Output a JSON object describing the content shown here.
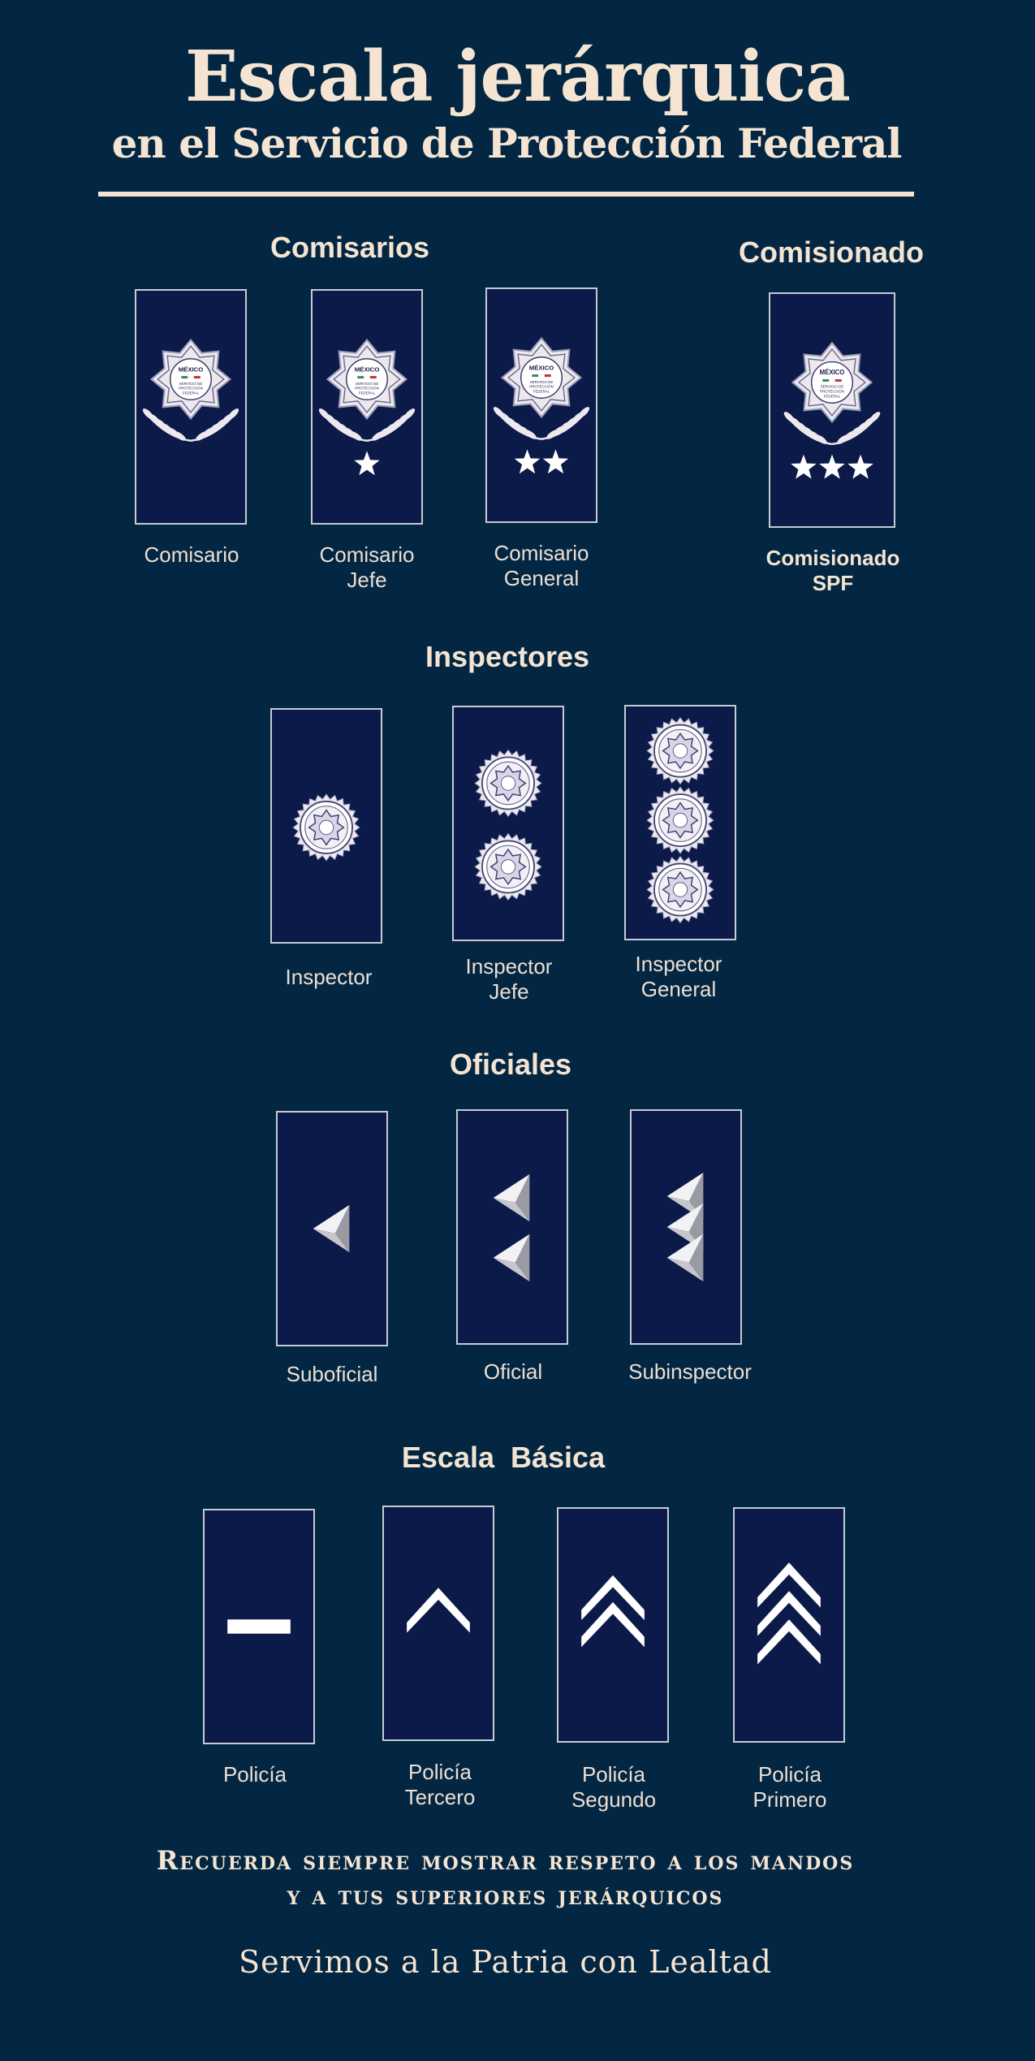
{
  "header": {
    "title": "Escala jerárquica",
    "subtitle": "en el Servicio de Protección Federal"
  },
  "sections": {
    "comisarios": {
      "title": "Comisarios",
      "ranks": [
        {
          "label": "Comisario",
          "insignia": "badge-laurel-icon",
          "stars": 0
        },
        {
          "label": "Comisario\nJefe",
          "insignia": "badge-laurel-icon",
          "stars": 1
        },
        {
          "label": "Comisario\nGeneral",
          "insignia": "badge-laurel-icon",
          "stars": 2
        }
      ]
    },
    "comisionado": {
      "title": "Comisionado",
      "ranks": [
        {
          "label": "Comisionado\nSPF",
          "insignia": "badge-laurel-icon",
          "stars": 3
        }
      ]
    },
    "inspectores": {
      "title": "Inspectores",
      "ranks": [
        {
          "label": "Inspector",
          "insignia": "round-seal-icon",
          "count": 1
        },
        {
          "label": "Inspector\nJefe",
          "insignia": "round-seal-icon",
          "count": 2
        },
        {
          "label": "Inspector\nGeneral",
          "insignia": "round-seal-icon",
          "count": 3
        }
      ]
    },
    "oficiales": {
      "title": "Oficiales",
      "ranks": [
        {
          "label": "Suboficial",
          "insignia": "pyramid-icon",
          "count": 1
        },
        {
          "label": "Oficial",
          "insignia": "pyramid-icon",
          "count": 2
        },
        {
          "label": "Subinspector",
          "insignia": "pyramid-icon",
          "count": 3
        }
      ]
    },
    "basica": {
      "title": "Escala  Básica",
      "ranks": [
        {
          "label": "Policía",
          "insignia": "bar-icon",
          "count": 1
        },
        {
          "label": "Policía\nTercero",
          "insignia": "chevron-icon",
          "count": 1
        },
        {
          "label": "Policía\nSegundo",
          "insignia": "chevron-icon",
          "count": 2
        },
        {
          "label": "Policía\nPrimero",
          "insignia": "chevron-icon",
          "count": 3
        }
      ]
    }
  },
  "emblem": {
    "top_text": "MÉXICO",
    "lines": [
      "SERVICIO DE",
      "PROTECCIÓN",
      "FEDERAL"
    ]
  },
  "footer": {
    "line1": "Recuerda siempre mostrar respeto a los mandos",
    "line2": "y a tus superiores jerárquicos",
    "motto": "Servimos a la Patria con Lealtad"
  },
  "colors": {
    "background": "#032642",
    "board": "#0c1a4a",
    "text": "#f4e4d1"
  }
}
